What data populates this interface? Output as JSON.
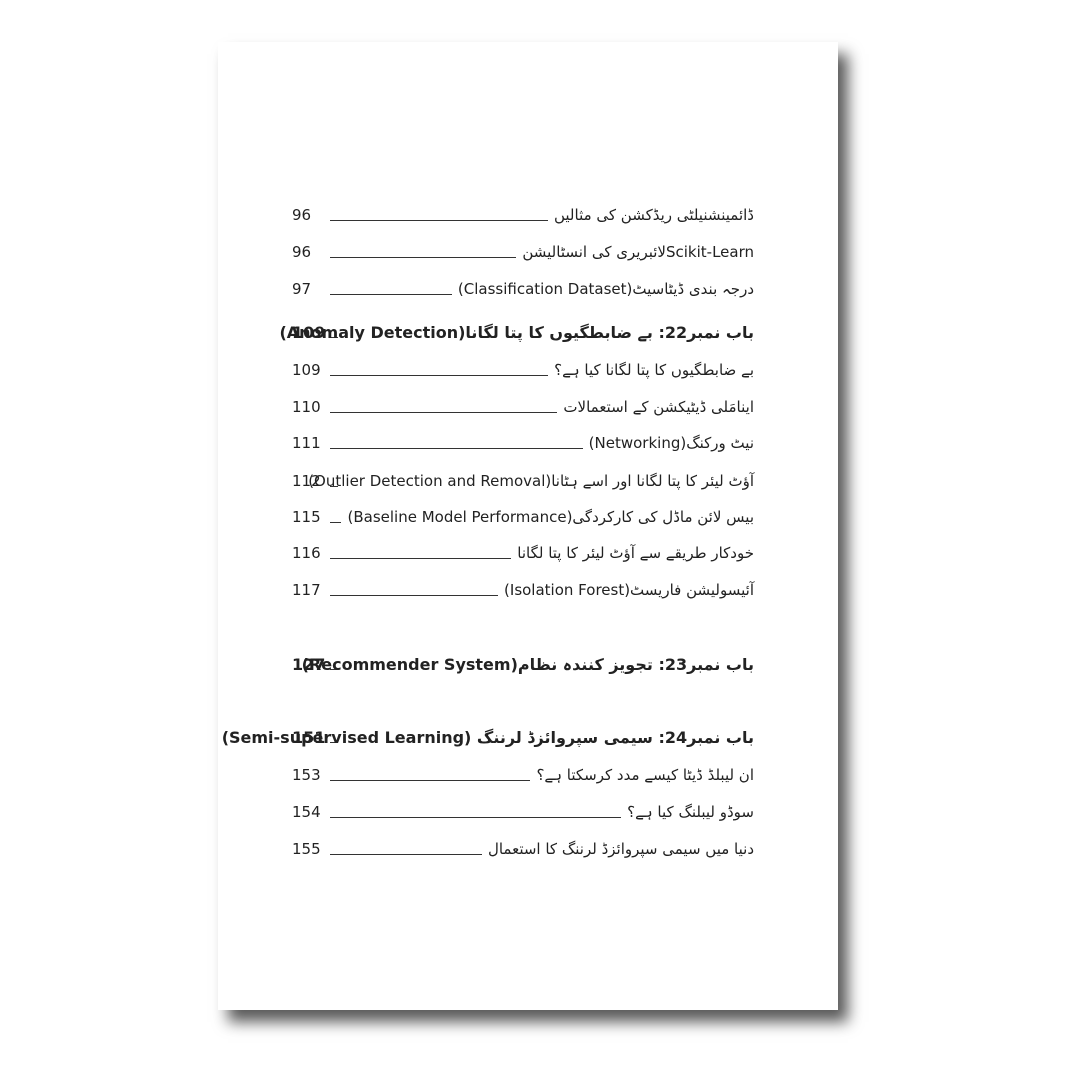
{
  "entries": [
    {
      "title": "ڈائمینشنیلٹی ریڈکشن کی مثالیں",
      "page": "96"
    },
    {
      "title": "Scikit-Learnلائبریری کی انسٹالیشن",
      "page": "96"
    },
    {
      "title": "درجہ بندی ڈیٹاسیٹ(Classification Dataset)",
      "page": "97"
    },
    {
      "title": "باب نمبر22: بے ضابطگیوں کا پتا لگانا(Anomaly Detection)",
      "page": "109",
      "bold": true
    },
    {
      "title": "بے ضابطگیوں کا پتا لگانا کیا ہے؟",
      "page": "109"
    },
    {
      "title": "اینامَلی ڈیٹیکشن کے استعمالات",
      "page": "110"
    },
    {
      "title": "نیٹ ورکنگ(Networking)",
      "page": "111"
    },
    {
      "title": "آؤٹ لیئر کا پتا لگانا اور اسے ہٹانا(Outlier Detection and Removal)",
      "page": "112"
    },
    {
      "title": "بیس لائن ماڈل کی کارکردگی(Baseline Model Performance)",
      "page": "115"
    },
    {
      "title": "خودکار طریقے سے آؤٹ لیئر کا پتا لگانا",
      "page": "116"
    },
    {
      "title": "آئیسولیشن فاریسٹ(Isolation Forest)",
      "page": "117"
    },
    {
      "title": "باب نمبر23: تجویز کنندہ نظام(Recommender System)",
      "page": "127",
      "bold": true
    },
    {
      "title": "باب نمبر24: سیمی سپروائزڈ لرننگ (Semi-supervised Learning)",
      "page": "151",
      "bold": true
    },
    {
      "title": "ان لیبلڈ ڈیٹا کیسے مدد کرسکتا ہے؟",
      "page": "153"
    },
    {
      "title": "سوڈو لیبلنگ کیا ہے؟",
      "page": "154"
    },
    {
      "title": "دنیا میں سیمی سپروائزڈ لرننگ کا استعمال",
      "page": "155"
    }
  ]
}
